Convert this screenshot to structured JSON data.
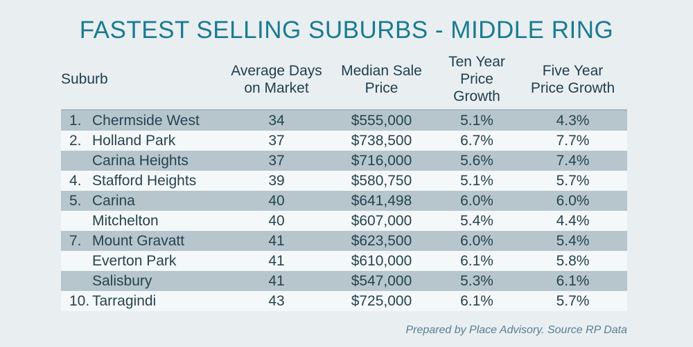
{
  "title": "FASTEST SELLING SUBURBS - MIDDLE RING",
  "footer": "Prepared by Place Advisory. Source RP Data",
  "colors": {
    "background": "#e9eef1",
    "row_shaded": "#b7c6cd",
    "row_light": "#f5f8f9",
    "title_text": "#1a7b90",
    "header_text": "#1e3e4d",
    "body_text": "#27434f",
    "footer_text": "#587e92"
  },
  "chart_data": {
    "type": "table",
    "title": "FASTEST SELLING SUBURBS - MIDDLE RING",
    "columns": [
      {
        "line1": "Suburb",
        "line2": ""
      },
      {
        "line1": "Average Days",
        "line2": "on Market"
      },
      {
        "line1": "Median Sale",
        "line2": "Price"
      },
      {
        "line1": "Ten Year",
        "line2": "Price Growth"
      },
      {
        "line1": "Five Year",
        "line2": "Price Growth"
      }
    ],
    "rows": [
      {
        "rank": "1.",
        "suburb": "Chermside West",
        "days": 34,
        "price": "$555,000",
        "ten_year": "5.1%",
        "five_year": "4.3%"
      },
      {
        "rank": "2.",
        "suburb": "Holland Park",
        "days": 37,
        "price": "$738,500",
        "ten_year": "6.7%",
        "five_year": "7.7%"
      },
      {
        "rank": "",
        "suburb": "Carina Heights",
        "days": 37,
        "price": "$716,000",
        "ten_year": "5.6%",
        "five_year": "7.4%"
      },
      {
        "rank": "4.",
        "suburb": "Stafford Heights",
        "days": 39,
        "price": "$580,750",
        "ten_year": "5.1%",
        "five_year": "5.7%"
      },
      {
        "rank": "5.",
        "suburb": "Carina",
        "days": 40,
        "price": "$641,498",
        "ten_year": "6.0%",
        "five_year": "6.0%"
      },
      {
        "rank": "",
        "suburb": "Mitchelton",
        "days": 40,
        "price": "$607,000",
        "ten_year": "5.4%",
        "five_year": "4.4%"
      },
      {
        "rank": "7.",
        "suburb": "Mount Gravatt",
        "days": 41,
        "price": "$623,500",
        "ten_year": "6.0%",
        "five_year": "5.4%"
      },
      {
        "rank": "",
        "suburb": "Everton Park",
        "days": 41,
        "price": "$610,000",
        "ten_year": "6.1%",
        "five_year": "5.8%"
      },
      {
        "rank": "",
        "suburb": "Salisbury",
        "days": 41,
        "price": "$547,000",
        "ten_year": "5.3%",
        "five_year": "6.1%"
      },
      {
        "rank": "10.",
        "suburb": "Tarragindi",
        "days": 43,
        "price": "$725,000",
        "ten_year": "6.1%",
        "five_year": "5.7%"
      }
    ]
  }
}
